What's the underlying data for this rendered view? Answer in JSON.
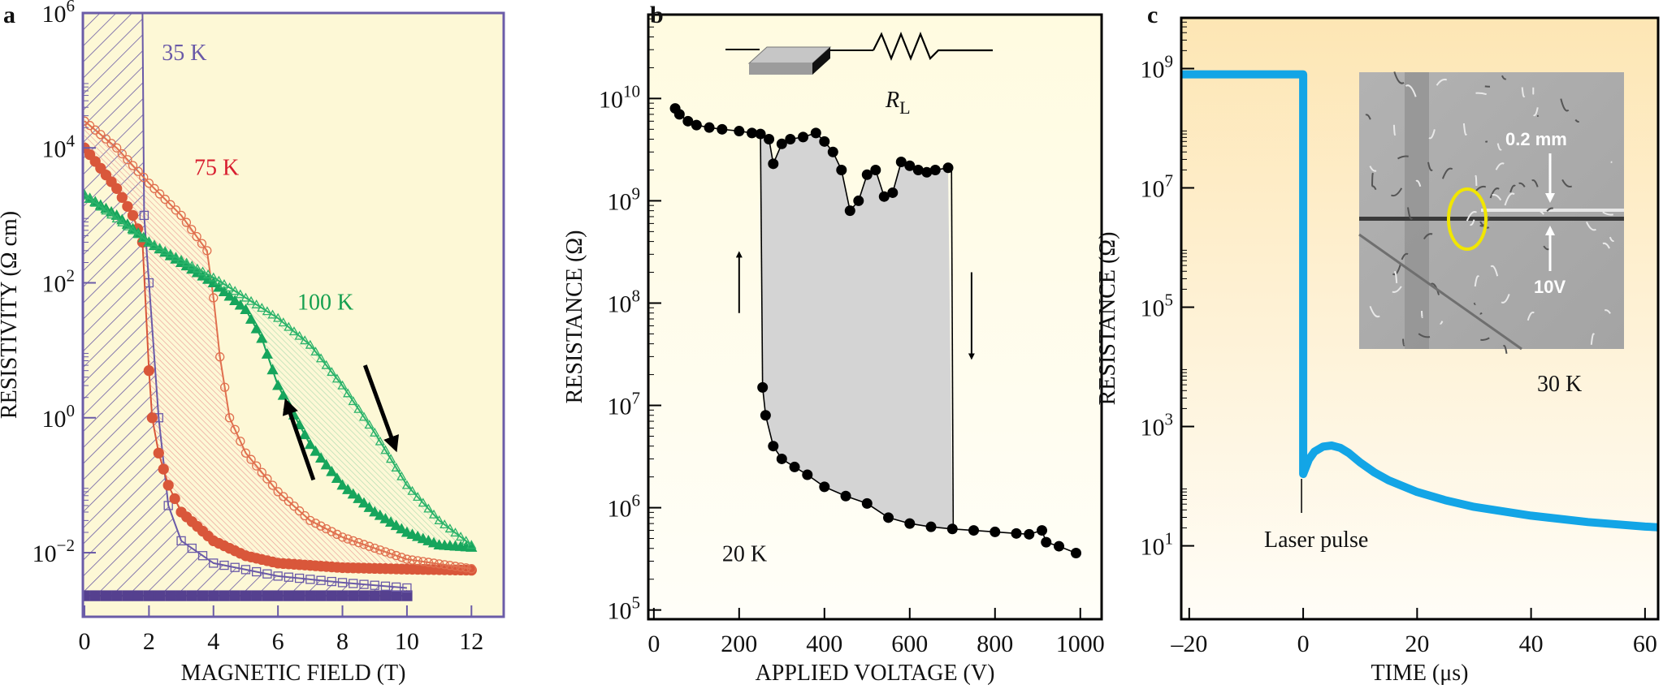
{
  "chart_data": [
    {
      "panel_label": "a",
      "type": "scatter",
      "title": "",
      "xlabel": "MAGNETIC FIELD (T)",
      "ylabel": "RESISTIVITY (Ω cm)",
      "xlim": [
        0,
        13
      ],
      "ylim": [
        0.001,
        1000000
      ],
      "yscale": "log",
      "x_ticks": [
        0,
        2,
        4,
        6,
        8,
        10,
        12
      ],
      "y_tick_exponents": [
        6,
        4,
        2,
        0,
        -2
      ],
      "background": "#fdf8d6",
      "series": [
        {
          "name": "35 K field up",
          "marker": "filled-square",
          "color": "#55408f",
          "points": [
            [
              0,
              0.0023
            ],
            [
              2,
              0.0023
            ],
            [
              4,
              0.0023
            ],
            [
              6,
              0.0023
            ],
            [
              8,
              0.0023
            ],
            [
              10,
              0.0023
            ]
          ]
        },
        {
          "name": "35 K field down",
          "marker": "open-square",
          "color": "#6a5aa8",
          "points": [
            [
              1.8,
              1000000
            ],
            [
              1.85,
              1000
            ],
            [
              2,
              100
            ],
            [
              2.3,
              1
            ],
            [
              2.6,
              0.05
            ],
            [
              3,
              0.015
            ],
            [
              4,
              0.007
            ],
            [
              6,
              0.0045
            ],
            [
              8,
              0.0036
            ],
            [
              10,
              0.003
            ]
          ]
        },
        {
          "name": "75 K field up",
          "marker": "filled-circle",
          "color": "#d9573a",
          "points": [
            [
              0,
              10000
            ],
            [
              0.5,
              5000
            ],
            [
              1,
              2500
            ],
            [
              1.5,
              1000
            ],
            [
              1.8,
              400
            ],
            [
              2,
              5
            ],
            [
              2.1,
              1
            ],
            [
              2.3,
              0.3
            ],
            [
              2.6,
              0.1
            ],
            [
              3,
              0.04
            ],
            [
              4,
              0.015
            ],
            [
              5,
              0.009
            ],
            [
              6,
              0.007
            ],
            [
              8,
              0.006
            ],
            [
              10,
              0.0057
            ],
            [
              12,
              0.0055
            ]
          ]
        },
        {
          "name": "75 K field down",
          "marker": "open-circle",
          "color": "#e0704f",
          "points": [
            [
              0,
              25000
            ],
            [
              1,
              10000
            ],
            [
              2,
              3000
            ],
            [
              3,
              1000
            ],
            [
              3.8,
              300
            ],
            [
              4,
              60
            ],
            [
              4.2,
              8
            ],
            [
              4.5,
              1
            ],
            [
              5,
              0.3
            ],
            [
              6,
              0.08
            ],
            [
              7,
              0.03
            ],
            [
              8,
              0.017
            ],
            [
              10,
              0.008
            ],
            [
              12,
              0.0058
            ]
          ]
        },
        {
          "name": "100 K field up",
          "marker": "filled-triangle",
          "color": "#17a55c",
          "points": [
            [
              0,
              2000
            ],
            [
              1,
              1000
            ],
            [
              2,
              400
            ],
            [
              3,
              200
            ],
            [
              4,
              100
            ],
            [
              5,
              40
            ],
            [
              5.5,
              15
            ],
            [
              6,
              3
            ],
            [
              7,
              0.4
            ],
            [
              8,
              0.1
            ],
            [
              9,
              0.04
            ],
            [
              10,
              0.02
            ],
            [
              11,
              0.013
            ],
            [
              12,
              0.012
            ]
          ]
        },
        {
          "name": "100 K field down",
          "marker": "open-triangle",
          "color": "#2bb36a",
          "points": [
            [
              0,
              2000
            ],
            [
              2,
              400
            ],
            [
              4,
              120
            ],
            [
              5,
              60
            ],
            [
              6,
              30
            ],
            [
              7,
              12
            ],
            [
              8,
              3
            ],
            [
              9,
              0.6
            ],
            [
              10,
              0.1
            ],
            [
              11,
              0.03
            ],
            [
              12,
              0.013
            ]
          ]
        }
      ],
      "annotations": [
        {
          "text": "35 K",
          "x": 2.4,
          "y": 200000,
          "color": "#6a5aa8"
        },
        {
          "text": "75 K",
          "x": 3.4,
          "y": 4000,
          "color": "#d81e2f"
        },
        {
          "text": "100 K",
          "x": 6.6,
          "y": 40,
          "color": "#16a050"
        }
      ],
      "arrows": [
        {
          "direction": "up-left",
          "from": [
            7.1,
            0.12
          ],
          "to": [
            6.3,
            1.5
          ]
        },
        {
          "direction": "down-right",
          "from": [
            8.7,
            6
          ],
          "to": [
            9.6,
            0.4
          ]
        }
      ]
    },
    {
      "panel_label": "b",
      "type": "scatter",
      "title": "",
      "xlabel": "APPLIED VOLTAGE (V)",
      "ylabel": "RESISTANCE (Ω)",
      "xlim": [
        0,
        1000
      ],
      "ylim": [
        100000,
        50000000000
      ],
      "yscale": "log",
      "x_ticks": [
        0,
        200,
        400,
        600,
        800,
        1000
      ],
      "y_tick_exponents": [
        10,
        9,
        8,
        7,
        6,
        5
      ],
      "series": [
        {
          "name": "high-resistance branch",
          "marker": "filled-circle",
          "color": "#000000",
          "points": [
            [
              50,
              8000000000.0
            ],
            [
              60,
              7000000000.0
            ],
            [
              80,
              6000000000.0
            ],
            [
              100,
              5500000000.0
            ],
            [
              130,
              5200000000.0
            ],
            [
              160,
              5000000000.0
            ],
            [
              200,
              4800000000.0
            ],
            [
              230,
              4600000000.0
            ],
            [
              250,
              4500000000.0
            ],
            [
              270,
              4000000000.0
            ],
            [
              280,
              2300000000.0
            ],
            [
              300,
              3600000000.0
            ],
            [
              320,
              4000000000.0
            ],
            [
              350,
              4200000000.0
            ],
            [
              380,
              4600000000.0
            ],
            [
              400,
              3800000000.0
            ],
            [
              420,
              3000000000.0
            ],
            [
              440,
              2000000000.0
            ],
            [
              460,
              800000000.0
            ],
            [
              480,
              1000000000.0
            ],
            [
              500,
              1800000000.0
            ],
            [
              520,
              2000000000.0
            ],
            [
              540,
              1100000000.0
            ],
            [
              560,
              1200000000.0
            ],
            [
              580,
              2400000000.0
            ],
            [
              600,
              2200000000.0
            ],
            [
              620,
              2000000000.0
            ],
            [
              640,
              1900000000.0
            ],
            [
              660,
              2000000000.0
            ],
            [
              690,
              2100000000.0
            ]
          ]
        },
        {
          "name": "low-resistance branch",
          "marker": "filled-circle",
          "color": "#000000",
          "points": [
            [
              255,
              15000000.0
            ],
            [
              262,
              8000000.0
            ],
            [
              280,
              4000000.0
            ],
            [
              300,
              3000000.0
            ],
            [
              330,
              2500000.0
            ],
            [
              360,
              2100000.0
            ],
            [
              400,
              1600000.0
            ],
            [
              450,
              1300000.0
            ],
            [
              500,
              1100000.0
            ],
            [
              550,
              800000.0
            ],
            [
              600,
              700000.0
            ],
            [
              650,
              650000.0
            ],
            [
              700,
              620000.0
            ],
            [
              750,
              600000.0
            ],
            [
              800,
              580000.0
            ],
            [
              850,
              560000.0
            ],
            [
              880,
              550000.0
            ],
            [
              910,
              600000.0
            ],
            [
              920,
              460000.0
            ],
            [
              950,
              420000.0
            ],
            [
              990,
              360000.0
            ]
          ]
        }
      ],
      "switching": {
        "set_voltage": 250,
        "reset_voltage": 700
      },
      "annotations": [
        {
          "text": "20 K",
          "x": 200,
          "y": 300000
        }
      ],
      "circuit": {
        "resistor_symbol": "R",
        "resistor_subscript": "L"
      }
    },
    {
      "panel_label": "c",
      "type": "line",
      "title": "",
      "xlabel": "TIME (μs)",
      "ylabel": "RESISTANCE (Ω)",
      "xlim": [
        -20,
        60
      ],
      "ylim": [
        1,
        5000000000
      ],
      "yscale": "log",
      "x_ticks": [
        -20,
        0,
        20,
        40,
        60
      ],
      "x_tick_labels": [
        "–20",
        "0",
        "20",
        "40",
        "60"
      ],
      "y_tick_exponents": [
        9,
        7,
        5,
        3,
        1
      ],
      "series": [
        {
          "name": "resistance",
          "color": "#13a5e6",
          "points": [
            [
              -21.4,
              800000000.0
            ],
            [
              0,
              800000000.0
            ],
            [
              0,
              160
            ],
            [
              1,
              280
            ],
            [
              2,
              380
            ],
            [
              3.5,
              460
            ],
            [
              5,
              480
            ],
            [
              6.5,
              440
            ],
            [
              8,
              360
            ],
            [
              10,
              250
            ],
            [
              12.5,
              170
            ],
            [
              15,
              125
            ],
            [
              20,
              80
            ],
            [
              25,
              58
            ],
            [
              30,
              45
            ],
            [
              40,
              32
            ],
            [
              50,
              25
            ],
            [
              60,
              21
            ],
            [
              62.3,
              20.5
            ]
          ]
        }
      ],
      "annotations": [
        {
          "text": "30 K"
        },
        {
          "text": "Laser pulse",
          "x": 0
        }
      ],
      "inset": {
        "scale_label": "0.2 mm",
        "voltage_label": "10V",
        "highlight_color": "#f1e600"
      }
    }
  ]
}
